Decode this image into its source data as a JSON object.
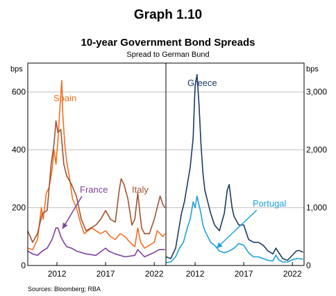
{
  "title": "Graph 1.10",
  "subtitle": "10-year Government Bond Spreads",
  "note": "Spread to German Bund",
  "source": "Sources: Bloomberg; RBA",
  "chart_data": [
    {
      "type": "line",
      "panel": "left",
      "ylabel": "bps",
      "ylim": [
        0,
        700
      ],
      "yticks": [
        0,
        200,
        400,
        600
      ],
      "ytick_labels": [
        "0",
        "200",
        "400",
        "600"
      ],
      "xlim": [
        2009.0,
        2023.2
      ],
      "xticks": [
        2012,
        2017,
        2022
      ],
      "xtick_labels": [
        "2012",
        "2017",
        "2022"
      ],
      "grid": true,
      "series": [
        {
          "name": "Spain",
          "color": "#F26F21",
          "x": [
            2009.0,
            2009.5,
            2010.0,
            2010.4,
            2010.6,
            2010.9,
            2011.2,
            2011.5,
            2011.7,
            2011.9,
            2012.1,
            2012.3,
            2012.5,
            2012.6,
            2012.8,
            2013.0,
            2013.3,
            2013.6,
            2014.0,
            2014.4,
            2014.8,
            2015.2,
            2015.6,
            2016.0,
            2016.5,
            2017.0,
            2017.5,
            2018.0,
            2018.5,
            2019.0,
            2019.5,
            2020.0,
            2020.3,
            2020.6,
            2021.0,
            2021.5,
            2022.0,
            2022.3,
            2022.6,
            2022.9,
            2023.1
          ],
          "values": [
            60,
            55,
            90,
            200,
            160,
            250,
            270,
            330,
            400,
            350,
            430,
            540,
            640,
            520,
            420,
            360,
            300,
            230,
            200,
            150,
            110,
            120,
            130,
            120,
            110,
            120,
            100,
            90,
            110,
            100,
            80,
            65,
            130,
            80,
            60,
            70,
            80,
            120,
            110,
            100,
            110
          ]
        },
        {
          "name": "Italy",
          "color": "#A0522D",
          "x": [
            2009.0,
            2009.5,
            2010.0,
            2010.5,
            2011.0,
            2011.4,
            2011.7,
            2011.9,
            2012.1,
            2012.4,
            2012.7,
            2013.0,
            2013.5,
            2014.0,
            2014.5,
            2015.0,
            2015.5,
            2016.0,
            2016.5,
            2017.0,
            2017.5,
            2018.0,
            2018.4,
            2018.6,
            2018.9,
            2019.3,
            2019.7,
            2020.0,
            2020.3,
            2020.7,
            2021.0,
            2021.5,
            2022.0,
            2022.3,
            2022.6,
            2022.9,
            2023.1
          ],
          "values": [
            120,
            80,
            110,
            180,
            190,
            350,
            420,
            500,
            460,
            470,
            350,
            310,
            280,
            240,
            160,
            120,
            130,
            140,
            160,
            190,
            160,
            150,
            260,
            300,
            280,
            230,
            140,
            160,
            250,
            130,
            110,
            110,
            160,
            200,
            240,
            210,
            200
          ]
        },
        {
          "name": "France",
          "color": "#7E3F98",
          "x": [
            2009.0,
            2009.5,
            2010.0,
            2010.5,
            2011.0,
            2011.5,
            2011.9,
            2012.1,
            2012.4,
            2012.7,
            2013.0,
            2013.5,
            2014.0,
            2015.0,
            2016.0,
            2017.0,
            2017.3,
            2018.0,
            2019.0,
            2020.0,
            2020.3,
            2021.0,
            2022.0,
            2022.5,
            2023.1
          ],
          "values": [
            50,
            40,
            35,
            50,
            60,
            90,
            130,
            130,
            100,
            80,
            65,
            60,
            50,
            40,
            35,
            60,
            50,
            40,
            30,
            35,
            55,
            30,
            45,
            55,
            55
          ]
        }
      ],
      "annotations": [
        {
          "text": "Spain",
          "color": "#F26F21"
        },
        {
          "text": "France",
          "color": "#7E3F98"
        },
        {
          "text": "Italy",
          "color": "#A0522D"
        }
      ]
    },
    {
      "type": "line",
      "panel": "right",
      "ylabel": "bps",
      "ylim": [
        0,
        3500
      ],
      "yticks": [
        0,
        1000,
        2000,
        3000
      ],
      "ytick_labels": [
        "0",
        "1,000",
        "2,000",
        "3,000"
      ],
      "xlim": [
        2009.0,
        2023.2
      ],
      "xticks": [
        2012,
        2017,
        2022
      ],
      "xtick_labels": [
        "2012",
        "2017",
        "2022"
      ],
      "grid": true,
      "series": [
        {
          "name": "Greece",
          "color": "#1B3A63",
          "x": [
            2009.0,
            2009.5,
            2010.0,
            2010.3,
            2010.6,
            2010.9,
            2011.2,
            2011.5,
            2011.8,
            2012.0,
            2012.2,
            2012.4,
            2012.6,
            2012.8,
            2013.0,
            2013.3,
            2013.6,
            2014.0,
            2014.5,
            2015.0,
            2015.3,
            2015.5,
            2015.8,
            2016.0,
            2016.5,
            2017.0,
            2017.5,
            2018.0,
            2018.5,
            2019.0,
            2019.5,
            2020.0,
            2020.3,
            2020.6,
            2021.0,
            2021.5,
            2022.0,
            2022.4,
            2022.7,
            2023.1
          ],
          "values": [
            150,
            120,
            300,
            600,
            900,
            1100,
            1400,
            1700,
            2200,
            3100,
            3300,
            2800,
            2100,
            1600,
            1300,
            1100,
            900,
            700,
            600,
            900,
            1300,
            1400,
            1000,
            850,
            700,
            700,
            450,
            400,
            400,
            350,
            250,
            200,
            300,
            220,
            120,
            90,
            180,
            250,
            260,
            230
          ]
        },
        {
          "name": "Portugal",
          "color": "#1BA1D9",
          "x": [
            2009.0,
            2009.5,
            2010.0,
            2010.4,
            2010.8,
            2011.2,
            2011.5,
            2011.8,
            2012.0,
            2012.2,
            2012.4,
            2012.6,
            2012.8,
            2013.0,
            2013.3,
            2013.6,
            2014.0,
            2014.5,
            2015.0,
            2015.5,
            2016.0,
            2016.5,
            2017.0,
            2017.5,
            2018.0,
            2018.5,
            2019.0,
            2019.5,
            2020.0,
            2020.3,
            2020.6,
            2021.0,
            2021.5,
            2022.0,
            2022.5,
            2023.1
          ],
          "values": [
            50,
            60,
            150,
            300,
            400,
            650,
            800,
            1100,
            1000,
            1200,
            1050,
            900,
            700,
            600,
            500,
            400,
            350,
            250,
            220,
            250,
            300,
            380,
            350,
            220,
            150,
            150,
            120,
            90,
            80,
            180,
            100,
            60,
            60,
            100,
            120,
            110
          ]
        }
      ],
      "annotations": [
        {
          "text": "Greece",
          "color": "#1B3A63"
        },
        {
          "text": "Portugal",
          "color": "#1BA1D9"
        }
      ]
    }
  ]
}
